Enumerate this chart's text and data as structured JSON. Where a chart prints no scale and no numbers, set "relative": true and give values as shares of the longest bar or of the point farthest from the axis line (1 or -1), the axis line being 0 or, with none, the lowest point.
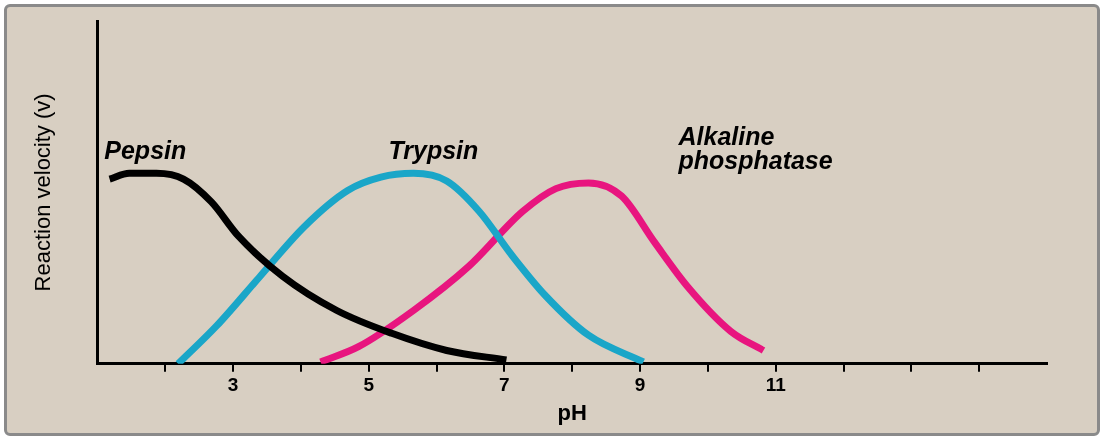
{
  "chart_data": {
    "type": "line",
    "xlabel": "pH",
    "ylabel": "Reaction velocity (v)",
    "relative": true,
    "xlim": [
      1,
      15
    ],
    "xticks": [
      {
        "value": 2,
        "label": null
      },
      3,
      {
        "value": 4,
        "label": null
      },
      5,
      {
        "value": 6,
        "label": null
      },
      7,
      {
        "value": 8,
        "label": null
      },
      9,
      {
        "value": 10,
        "label": null
      },
      11,
      {
        "value": 12,
        "label": null
      },
      {
        "value": 13,
        "label": null
      },
      {
        "value": 14,
        "label": null
      }
    ],
    "grid": false,
    "legend": false,
    "marker": "none",
    "line_style": "solid",
    "series": [
      {
        "name": "Pepsin",
        "color": "#000000",
        "x": [
          1.18,
          1.47,
          1.87,
          2.27,
          2.68,
          3.08,
          3.73,
          4.53,
          5.34,
          6.15,
          7.03
        ],
        "values": [
          0.97,
          1.0,
          1.0,
          0.97,
          0.85,
          0.67,
          0.46,
          0.28,
          0.16,
          0.07,
          0.02
        ]
      },
      {
        "name": "Trypsin",
        "color": "#1aa6c8",
        "x": [
          2.19,
          2.76,
          3.4,
          4.05,
          4.69,
          5.18,
          5.66,
          6.15,
          6.63,
          7.11,
          7.6,
          8.24,
          9.05
        ],
        "values": [
          0,
          0.2,
          0.46,
          0.72,
          0.91,
          0.98,
          1.0,
          0.96,
          0.8,
          0.57,
          0.36,
          0.15,
          0.01
        ]
      },
      {
        "name": "Alkaline phosphatase",
        "color": "#e8157f",
        "x": [
          4.29,
          4.85,
          5.66,
          6.47,
          7.27,
          7.76,
          8.24,
          8.73,
          9.21,
          9.69,
          10.34,
          10.82
        ],
        "values": [
          0.01,
          0.09,
          0.28,
          0.51,
          0.8,
          0.92,
          0.95,
          0.88,
          0.64,
          0.41,
          0.17,
          0.07
        ]
      }
    ]
  }
}
